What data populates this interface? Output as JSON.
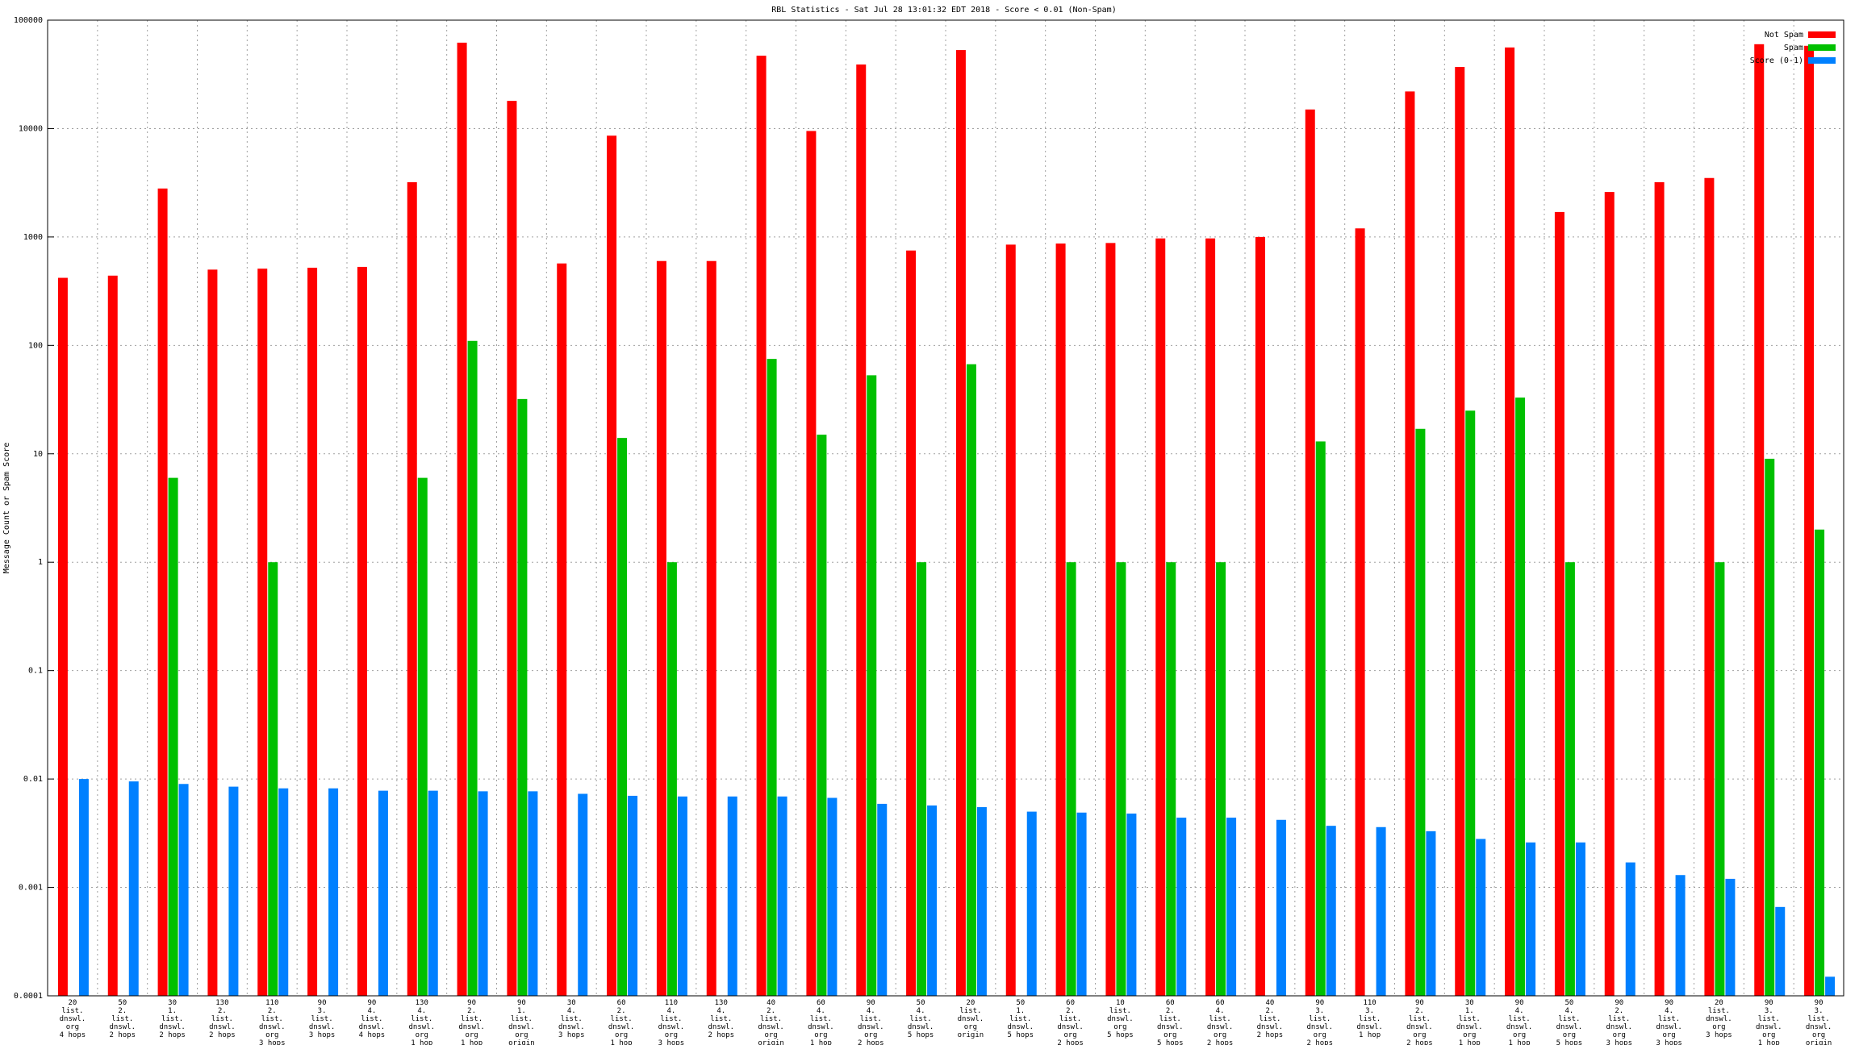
{
  "chart_data": {
    "type": "bar",
    "title": "RBL Statistics - Sat Jul 28 13:01:32 EDT 2018 - Score < 0.01 (Non-Spam)",
    "y_label": "Message Count or Spam Score",
    "log_scale": true,
    "grid": true,
    "legend_position": "top-right",
    "ylim": [
      0.0001,
      100000
    ],
    "yticks": [
      0.0001,
      0.001,
      0.01,
      0.1,
      1,
      10,
      100,
      1000,
      10000,
      100000
    ],
    "categories": [
      "20\nlist.\ndnswl.\norg\n4 hops",
      "50\n2.\nlist.\ndnswl.\n2 hops",
      "30\n1.\nlist.\ndnswl.\n2 hops",
      "130\n2.\nlist.\ndnswl.\n2 hops",
      "110\n2.\nlist.\ndnswl.\norg\n3 hops",
      "90\n3.\nlist.\ndnswl.\n3 hops",
      "90\n4.\nlist.\ndnswl.\n4 hops",
      "130\n4.\nlist.\ndnswl.\norg\n1 hop",
      "90\n2.\nlist.\ndnswl.\norg\n1 hop",
      "90\n1.\nlist.\ndnswl.\norg\norigin",
      "30\n4.\nlist.\ndnswl.\n3 hops",
      "60\n2.\nlist.\ndnswl.\norg\n1 hop",
      "110\n4.\nlist.\ndnswl.\norg\n3 hops",
      "130\n4.\nlist.\ndnswl.\n2 hops",
      "40\n2.\nlist.\ndnswl.\norg\norigin",
      "60\n4.\nlist.\ndnswl.\norg\n1 hop",
      "90\n4.\nlist.\ndnswl.\norg\n2 hops",
      "50\n4.\nlist.\ndnswl.\n5 hops",
      "20\nlist.\ndnswl.\norg\norigin",
      "50\n1.\nlist.\ndnswl.\n5 hops",
      "60\n2.\nlist.\ndnswl.\norg\n2 hops",
      "10\nlist.\ndnswl.\norg\n5 hops",
      "60\n2.\nlist.\ndnswl.\norg\n5 hops",
      "60\n4.\nlist.\ndnswl.\norg\n2 hops",
      "40\n2.\nlist.\ndnswl.\n2 hops",
      "90\n3.\nlist.\ndnswl.\norg\n2 hops",
      "110\n3.\nlist.\ndnswl.\n1 hop",
      "90\n2.\nlist.\ndnswl.\norg\n2 hops",
      "30\n1.\nlist.\ndnswl.\norg\n1 hop",
      "90\n4.\nlist.\ndnswl.\norg\n1 hop",
      "50\n4.\nlist.\ndnswl.\norg\n5 hops",
      "90\n2.\nlist.\ndnswl.\norg\n3 hops",
      "90\n4.\nlist.\ndnswl.\norg\n3 hops",
      "20\nlist.\ndnswl.\norg\n3 hops",
      "90\n3.\nlist.\ndnswl.\norg\n1 hop",
      "90\n3.\nlist.\ndnswl.\norg\norigin"
    ],
    "series": [
      {
        "name": "Not Spam",
        "color": "#ff0000",
        "values": [
          420,
          440,
          2800,
          500,
          510,
          520,
          530,
          3200,
          62000,
          18000,
          570,
          8600,
          600,
          600,
          47000,
          9500,
          39000,
          750,
          53000,
          850,
          870,
          880,
          970,
          970,
          1000,
          15000,
          1200,
          22000,
          37000,
          56000,
          1700,
          2600,
          3200,
          3500,
          60000,
          58000
        ]
      },
      {
        "name": "Spam",
        "color": "#00c000",
        "values": [
          null,
          null,
          6,
          null,
          1,
          null,
          null,
          6,
          110,
          32,
          null,
          14,
          1,
          null,
          75,
          15,
          53,
          1,
          67,
          null,
          1,
          1,
          1,
          1,
          null,
          13,
          null,
          17,
          25,
          33,
          1,
          null,
          null,
          1,
          9,
          2
        ]
      },
      {
        "name": "Score (0-1)",
        "color": "#0080ff",
        "values": [
          0.01,
          0.0095,
          0.009,
          0.0085,
          0.0082,
          0.0082,
          0.0078,
          0.0078,
          0.0077,
          0.0077,
          0.0073,
          0.007,
          0.0069,
          0.0069,
          0.0069,
          0.0067,
          0.0059,
          0.0057,
          0.0055,
          0.005,
          0.0049,
          0.0048,
          0.0044,
          0.0044,
          0.0042,
          0.0037,
          0.0036,
          0.0033,
          0.0028,
          0.0026,
          0.0026,
          0.0017,
          0.0013,
          0.0012,
          0.00066,
          0.00015
        ]
      }
    ]
  }
}
